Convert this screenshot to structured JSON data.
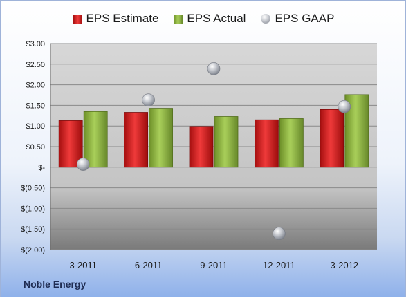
{
  "company": "Noble Energy",
  "chart_data": {
    "type": "bar",
    "categories": [
      "3-2011",
      "6-2011",
      "9-2011",
      "12-2011",
      "3-2012"
    ],
    "series": [
      {
        "name": "EPS Estimate",
        "type": "bar",
        "color": "#d11f1f",
        "values": [
          1.13,
          1.33,
          0.99,
          1.15,
          1.4
        ]
      },
      {
        "name": "EPS Actual",
        "type": "bar",
        "color": "#8cb33a",
        "values": [
          1.35,
          1.43,
          1.23,
          1.18,
          1.76
        ]
      },
      {
        "name": "EPS GAAP",
        "type": "scatter",
        "color": "#b8bcc4",
        "values": [
          0.07,
          1.63,
          2.39,
          -1.61,
          1.47
        ]
      }
    ],
    "ylim": [
      -2.0,
      3.0
    ],
    "yticks": [
      3.0,
      2.5,
      2.0,
      1.5,
      1.0,
      0.5,
      0,
      -0.5,
      -1.0,
      -1.5,
      -2.0
    ],
    "ytick_labels": [
      "$3.00",
      "$2.50",
      "$2.00",
      "$1.50",
      "$1.00",
      "$0.50",
      "$-",
      "$(0.50)",
      "$(1.00)",
      "$(1.50)",
      "$(2.00)"
    ],
    "grid": true,
    "legend_position": "top"
  }
}
